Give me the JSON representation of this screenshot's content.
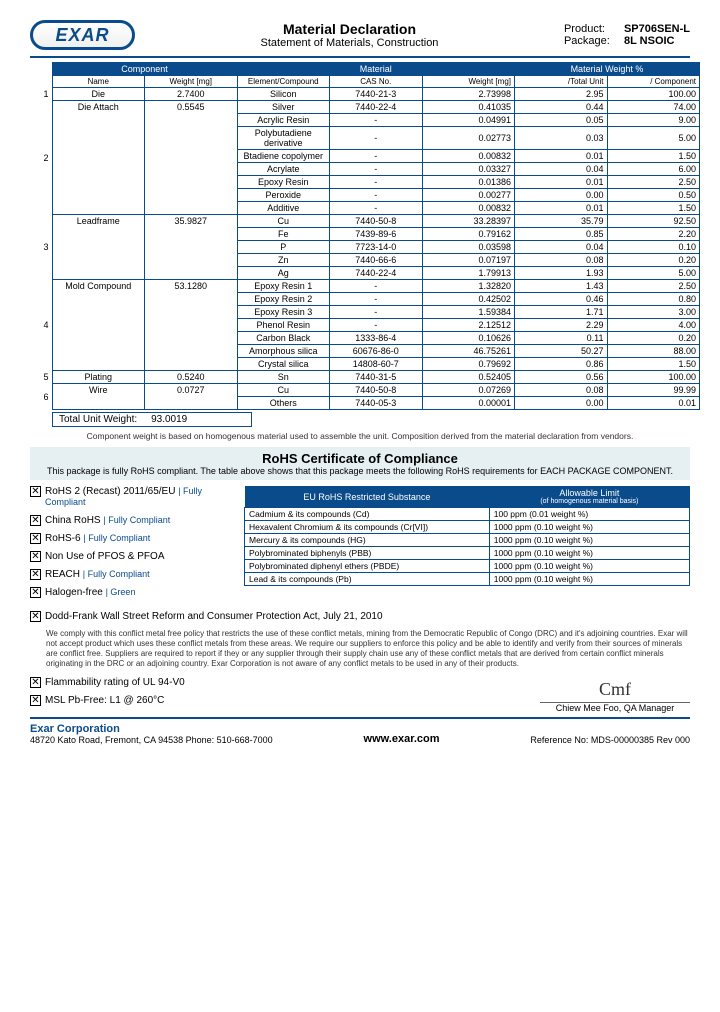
{
  "header": {
    "logo": "EXAR",
    "title": "Material Declaration",
    "subtitle": "Statement of Materials, Construction",
    "product_label": "Product:",
    "product": "SP706SEN-L",
    "package_label": "Package:",
    "package": "8L NSOIC"
  },
  "table": {
    "hdr_component": "Component",
    "hdr_material": "Material",
    "hdr_matwt": "Material Weight %",
    "sub_name": "Name",
    "sub_weight": "Weight [mg]",
    "sub_elem": "Element/Compound",
    "sub_cas": "CAS No.",
    "sub_mwt": "Weight [mg]",
    "sub_tu": "/Total Unit",
    "sub_comp": "/ Component",
    "rows": [
      {
        "idx": "1",
        "name": "Die",
        "wt": "2.7400",
        "mat": [
          [
            "Silicon",
            "7440-21-3",
            "2.73998",
            "2.95",
            "100.00"
          ]
        ]
      },
      {
        "idx": "2",
        "name": "Die Attach",
        "wt": "0.5545",
        "mat": [
          [
            "Silver",
            "7440-22-4",
            "0.41035",
            "0.44",
            "74.00"
          ],
          [
            "Acrylic Resin",
            "-",
            "0.04991",
            "0.05",
            "9.00"
          ],
          [
            "Polybutadiene derivative",
            "-",
            "0.02773",
            "0.03",
            "5.00"
          ],
          [
            "Btadiene copolymer",
            "-",
            "0.00832",
            "0.01",
            "1.50"
          ],
          [
            "Acrylate",
            "-",
            "0.03327",
            "0.04",
            "6.00"
          ],
          [
            "Epoxy Resin",
            "-",
            "0.01386",
            "0.01",
            "2.50"
          ],
          [
            "Peroxide",
            "-",
            "0.00277",
            "0.00",
            "0.50"
          ],
          [
            "Additive",
            "-",
            "0.00832",
            "0.01",
            "1.50"
          ]
        ]
      },
      {
        "idx": "3",
        "name": "Leadframe",
        "wt": "35.9827",
        "mat": [
          [
            "Cu",
            "7440-50-8",
            "33.28397",
            "35.79",
            "92.50"
          ],
          [
            "Fe",
            "7439-89-6",
            "0.79162",
            "0.85",
            "2.20"
          ],
          [
            "P",
            "7723-14-0",
            "0.03598",
            "0.04",
            "0.10"
          ],
          [
            "Zn",
            "7440-66-6",
            "0.07197",
            "0.08",
            "0.20"
          ],
          [
            "Ag",
            "7440-22-4",
            "1.79913",
            "1.93",
            "5.00"
          ]
        ]
      },
      {
        "idx": "4",
        "name": "Mold Compound",
        "wt": "53.1280",
        "mat": [
          [
            "Epoxy Resin 1",
            "-",
            "1.32820",
            "1.43",
            "2.50"
          ],
          [
            "Epoxy Resin 2",
            "-",
            "0.42502",
            "0.46",
            "0.80"
          ],
          [
            "Epoxy Resin 3",
            "-",
            "1.59384",
            "1.71",
            "3.00"
          ],
          [
            "Phenol Resin",
            "-",
            "2.12512",
            "2.29",
            "4.00"
          ],
          [
            "Carbon Black",
            "1333-86-4",
            "0.10626",
            "0.11",
            "0.20"
          ],
          [
            "Amorphous silica",
            "60676-86-0",
            "46.75261",
            "50.27",
            "88.00"
          ],
          [
            "Crystal silica",
            "14808-60-7",
            "0.79692",
            "0.86",
            "1.50"
          ]
        ]
      },
      {
        "idx": "5",
        "name": "Plating",
        "wt": "0.5240",
        "mat": [
          [
            "Sn",
            "7440-31-5",
            "0.52405",
            "0.56",
            "100.00"
          ]
        ]
      },
      {
        "idx": "6",
        "name": "Wire",
        "wt": "0.0727",
        "mat": [
          [
            "Cu",
            "7440-50-8",
            "0.07269",
            "0.08",
            "99.99"
          ],
          [
            "Others",
            "7440-05-3",
            "0.00001",
            "0.00",
            "0.01"
          ]
        ]
      }
    ],
    "total_label": "Total Unit Weight:",
    "total_value": "93.0019",
    "footnote": "Component weight is based on homogenous material used to assemble the unit.    Composition derived from the material declaration from vendors."
  },
  "rohs": {
    "title": "RoHS Certificate of Compliance",
    "subtitle": "This package is fully RoHS compliant.   The table above shows that this package meets the following RoHS requirements for EACH PACKAGE COMPONENT.",
    "items": [
      {
        "label": "RoHS 2 (Recast) 2011/65/EU",
        "status": "| Fully Compliant"
      },
      {
        "label": "China RoHS",
        "status": "| Fully Compliant"
      },
      {
        "label": "RoHS-6",
        "status": "| Fully Compliant"
      },
      {
        "label": "Non Use of PFOS & PFOA",
        "status": ""
      },
      {
        "label": "REACH",
        "status": "| Fully Compliant"
      },
      {
        "label": "Halogen-free",
        "status": "| Green"
      }
    ],
    "table_hdr1": "EU RoHS Restricted Substance",
    "table_hdr2": "Allowable Limit",
    "table_hdr2_sub": "(of homogenous material basis)",
    "substances": [
      [
        "Cadmium & its compounds (Cd)",
        "100 ppm (0.01 weight %)"
      ],
      [
        "Hexavalent Chromium & its compounds (Cr[VI])",
        "1000 ppm (0.10 weight %)"
      ],
      [
        "Mercury & its compounds (HG)",
        "1000 ppm (0.10 weight %)"
      ],
      [
        "Polybrominated biphenyls (PBB)",
        "1000 ppm (0.10 weight %)"
      ],
      [
        "Polybrominated diphenyl ethers (PBDE)",
        "1000 ppm (0.10 weight %)"
      ],
      [
        "Lead & its compounds (Pb)",
        "1000 ppm (0.10 weight %)"
      ]
    ],
    "dodd_label": "Dodd-Frank Wall Street Reform and Consumer Protection Act, July 21, 2010",
    "dodd_text": "We comply with this conflict metal free policy that restricts the use of these conflict metals, mining from the Democratic Republic of Congo (DRC) and it's adjoining countries.  Exar will not accept product which uses these conflict metals from these areas.  We require our suppliers to enforce this policy and be able to identify and verify from their sources of minerals are conflict free.  Suppliers are required to report if they or any supplier through their supply chain use any of these conflict metals that are derived from certain conflict minerals originating in the DRC or an adjoining country.  Exar Corporation is not aware of any conflict metals to be used in any of their products.",
    "flame": "Flammability rating of UL 94-V0",
    "msl": "MSL Pb-Free:  L1 @ 260°C",
    "signer": "Chiew Mee Foo, QA Manager",
    "sig": "Cmf"
  },
  "footer": {
    "corp": "Exar Corporation",
    "addr": "48720 Kato Road, Fremont, CA 94538  Phone:  510-668-7000",
    "web": "www.exar.com",
    "ref": "Reference No:  MDS-00000385 Rev 000"
  }
}
